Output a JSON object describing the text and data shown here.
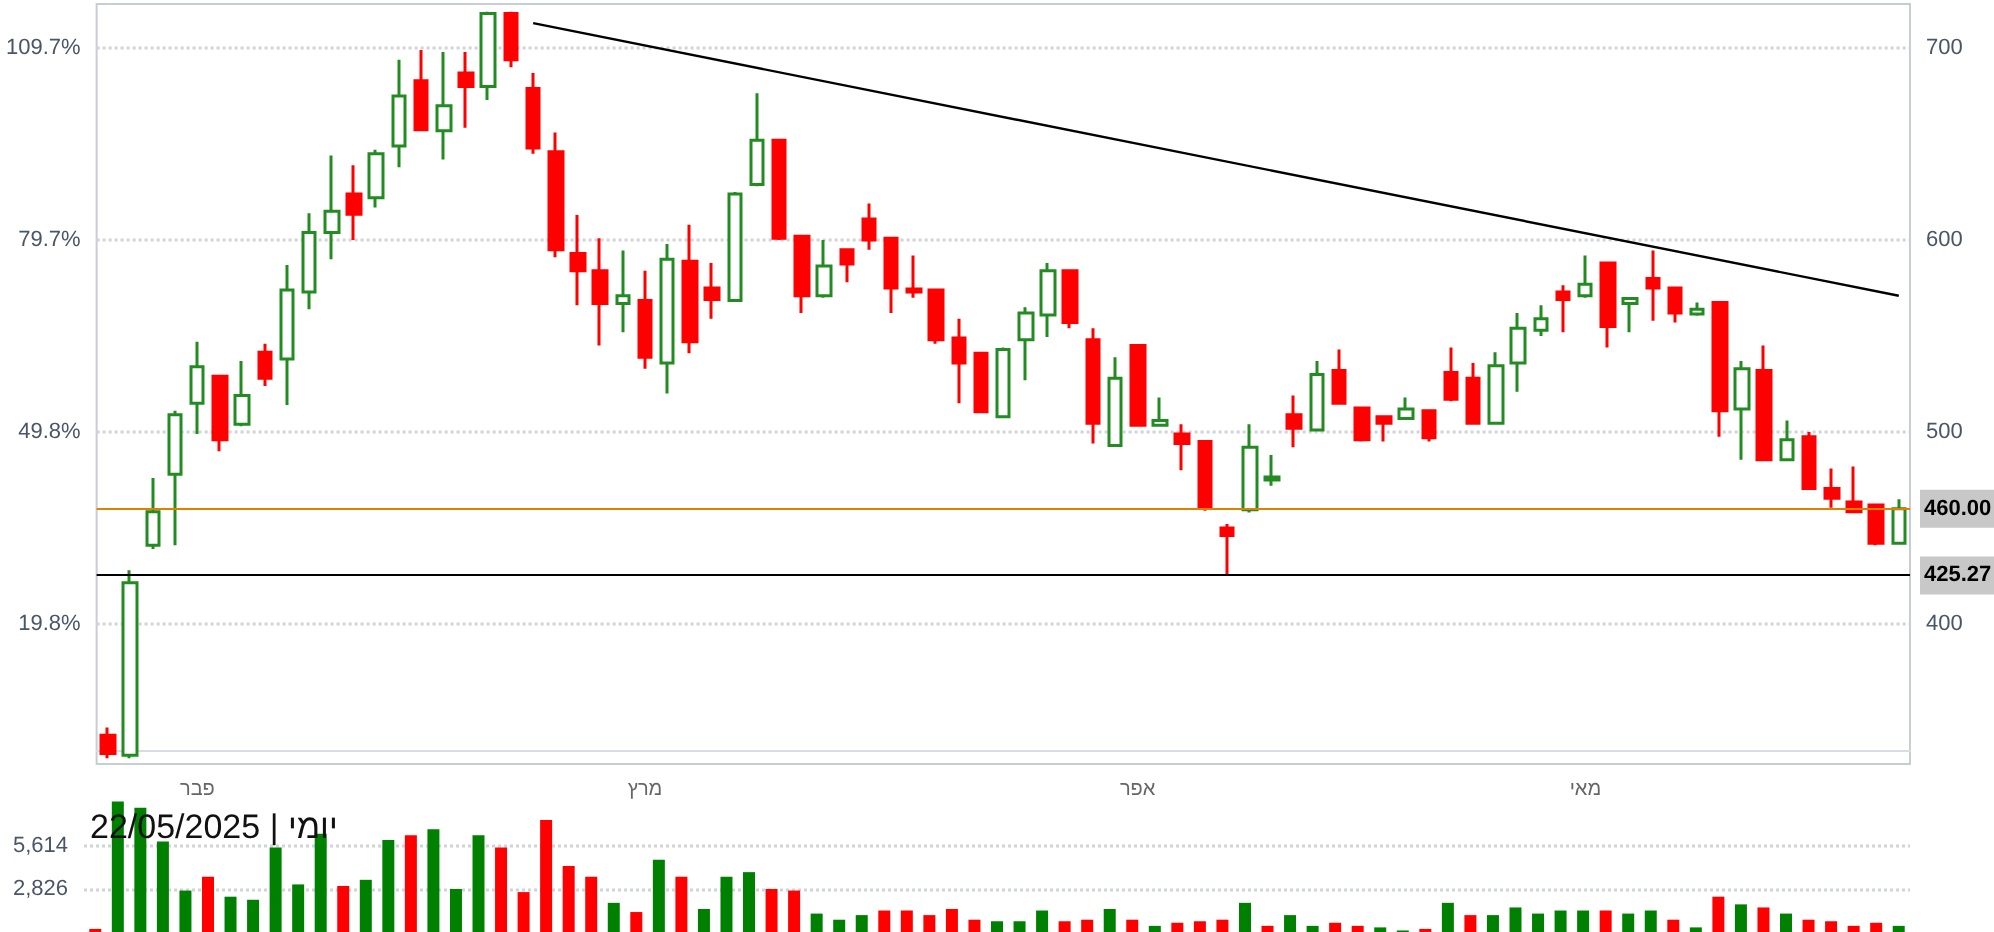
{
  "chart_data": [
    {
      "type": "candlestick",
      "categories": [
        null,
        null,
        null,
        null,
        "פבר",
        null,
        null,
        null,
        null,
        null,
        null,
        null,
        null,
        null,
        null,
        null,
        null,
        null,
        null,
        null,
        null,
        null,
        null,
        null,
        "מרץ",
        null,
        null,
        null,
        null,
        null,
        null,
        null,
        null,
        null,
        null,
        null,
        null,
        null,
        null,
        null,
        null,
        null,
        null,
        null,
        null,
        null,
        "אפר",
        null,
        null,
        null,
        null,
        null,
        null,
        null,
        null,
        null,
        null,
        null,
        null,
        null,
        null,
        null,
        null,
        null,
        null,
        null,
        "מאי",
        null,
        null,
        null,
        null,
        null,
        null,
        null,
        null,
        null,
        null,
        null,
        null,
        null,
        null
      ],
      "ohlc": [
        [
          342,
          346,
          330,
          332.5
        ],
        [
          331.5,
          428,
          330,
          421.5
        ],
        [
          441,
          476,
          439,
          458.5
        ],
        [
          478,
          511,
          441,
          509
        ],
        [
          515,
          547,
          499,
          534
        ],
        [
          529,
          529,
          490,
          496
        ],
        [
          504,
          537,
          503,
          519
        ],
        [
          541.5,
          546,
          524,
          528
        ],
        [
          538,
          587,
          514,
          574
        ],
        [
          573,
          614,
          564,
          604
        ],
        [
          604,
          644,
          590,
          615
        ],
        [
          624,
          639,
          600,
          613.5
        ],
        [
          622,
          647,
          617,
          645
        ],
        [
          649,
          694,
          638,
          675
        ],
        [
          683,
          699,
          657,
          657.5
        ],
        [
          657,
          698,
          642,
          670
        ],
        [
          687,
          698,
          658.5,
          680
        ],
        [
          680,
          719,
          673,
          718
        ],
        [
          718,
          719,
          690,
          694
        ],
        [
          679,
          687,
          645,
          648
        ],
        [
          646,
          656,
          591,
          595
        ],
        [
          593,
          613,
          566,
          584
        ],
        [
          584,
          601,
          545,
          567
        ],
        [
          567,
          594.5,
          552,
          571
        ],
        [
          568.5,
          584,
          533,
          539
        ],
        [
          536,
          598,
          520,
          590
        ],
        [
          589,
          608,
          541,
          547
        ],
        [
          575,
          588,
          559,
          569
        ],
        [
          568.5,
          625,
          568.5,
          624
        ],
        [
          629,
          676.5,
          628,
          652
        ],
        [
          652,
          652,
          600,
          601
        ],
        [
          602,
          602,
          562,
          571
        ],
        [
          571,
          600,
          570,
          586.5
        ],
        [
          595,
          595,
          578,
          587.5
        ],
        [
          611,
          619,
          595,
          600
        ],
        [
          601,
          601,
          562,
          575
        ],
        [
          574.5,
          592,
          570,
          573
        ],
        [
          574,
          574,
          546,
          548
        ],
        [
          549,
          559,
          515,
          536
        ],
        [
          541,
          541.5,
          510.5,
          510.5
        ],
        [
          508,
          544,
          508,
          543
        ],
        [
          548,
          565,
          527,
          562
        ],
        [
          561,
          588,
          549.5,
          584
        ],
        [
          584,
          584,
          554,
          557
        ],
        [
          548,
          554,
          494,
          504.5
        ],
        [
          493,
          539,
          493,
          528
        ],
        [
          545,
          545,
          503.5,
          503.5
        ],
        [
          503.5,
          518,
          503,
          506
        ],
        [
          499,
          504,
          480,
          494
        ],
        [
          495,
          495,
          459,
          461
        ],
        [
          450,
          452,
          425,
          446
        ],
        [
          459.5,
          504,
          458,
          492
        ],
        [
          475,
          488,
          472,
          476.5
        ],
        [
          509,
          519,
          492,
          502
        ],
        [
          501,
          537,
          501,
          530
        ],
        [
          532,
          543,
          515,
          515
        ],
        [
          512.5,
          512.5,
          495,
          496
        ],
        [
          508,
          508,
          495,
          504.5
        ],
        [
          507,
          518,
          507,
          512
        ],
        [
          511,
          511,
          495,
          497
        ],
        [
          531,
          544,
          516,
          517
        ],
        [
          528,
          536,
          504.5,
          504.5
        ],
        [
          504.5,
          541.5,
          504,
          534.5
        ],
        [
          536,
          562,
          521,
          554
        ],
        [
          553,
          566,
          550,
          559
        ],
        [
          573,
          576.5,
          552,
          569
        ],
        [
          571,
          592,
          570,
          577
        ],
        [
          588,
          588,
          544,
          555
        ],
        [
          567,
          570,
          552,
          569.5
        ],
        [
          580,
          594.5,
          558,
          575
        ],
        [
          575,
          575,
          557,
          562
        ],
        [
          561.5,
          567.5,
          560.5,
          564
        ],
        [
          567.5,
          567.5,
          497.5,
          511
        ],
        [
          512,
          537,
          485.5,
          533
        ],
        [
          532,
          545,
          485.5,
          485.5
        ],
        [
          485.5,
          506,
          485.5,
          496
        ],
        [
          497.5,
          500,
          470.5,
          470.5
        ],
        [
          470.5,
          481,
          460.5,
          465.5
        ],
        [
          463.5,
          482,
          458.5,
          458.5
        ],
        [
          462,
          462,
          441,
          442
        ],
        [
          442,
          465,
          442,
          460
        ]
      ],
      "colors": [
        "#ff0000",
        "#228b22",
        "#228b22",
        "#228b22",
        "#228b22",
        "#ff0000",
        "#228b22",
        "#ff0000",
        "#228b22",
        "#228b22",
        "#228b22",
        "#ff0000",
        "#228b22",
        "#228b22",
        "#ff0000",
        "#228b22",
        "#ff0000",
        "#228b22",
        "#ff0000",
        "#ff0000",
        "#ff0000",
        "#ff0000",
        "#ff0000",
        "#228b22",
        "#ff0000",
        "#228b22",
        "#ff0000",
        "#ff0000",
        "#228b22",
        "#228b22",
        "#ff0000",
        "#ff0000",
        "#228b22",
        "#ff0000",
        "#ff0000",
        "#ff0000",
        "#ff0000",
        "#ff0000",
        "#ff0000",
        "#ff0000",
        "#228b22",
        "#228b22",
        "#228b22",
        "#ff0000",
        "#ff0000",
        "#228b22",
        "#ff0000",
        "#228b22",
        "#ff0000",
        "#ff0000",
        "#ff0000",
        "#228b22",
        "#228b22",
        "#ff0000",
        "#228b22",
        "#ff0000",
        "#ff0000",
        "#ff0000",
        "#228b22",
        "#ff0000",
        "#ff0000",
        "#ff0000",
        "#228b22",
        "#228b22",
        "#228b22",
        "#ff0000",
        "#228b22",
        "#ff0000",
        "#228b22",
        "#ff0000",
        "#ff0000",
        "#228b22",
        "#ff0000",
        "#228b22",
        "#ff0000",
        "#228b22",
        "#ff0000",
        "#ff0000",
        "#ff0000",
        "#ff0000",
        "#228b22"
      ],
      "series": [
        {
          "type": "line",
          "color": "#000000",
          "values": [
            null,
            null,
            null,
            null,
            null,
            null,
            null,
            null,
            null,
            null,
            null,
            null,
            null,
            null,
            null,
            null,
            null,
            null,
            null,
            713,
            null,
            null,
            null,
            null,
            null,
            null,
            null,
            null,
            null,
            null,
            null,
            null,
            null,
            null,
            null,
            null,
            null,
            null,
            null,
            null,
            null,
            null,
            null,
            null,
            null,
            null,
            null,
            null,
            null,
            null,
            null,
            null,
            null,
            null,
            null,
            null,
            null,
            null,
            null,
            null,
            null,
            null,
            null,
            null,
            null,
            null,
            null,
            null,
            null,
            null,
            null,
            null,
            null,
            null,
            null,
            null,
            null,
            null,
            null,
            null,
            571
          ]
        }
      ],
      "marker": "none",
      "ylim": [
        327,
        723
      ],
      "yticks": [
        400,
        500,
        600,
        700
      ],
      "y2lim": [
        -2.1,
        116.6
      ],
      "y2ticks": [
        {
          "value": 19.8,
          "label": "19.8%"
        },
        {
          "value": 49.8,
          "label": "49.8%"
        },
        {
          "value": 79.7,
          "label": "79.7%"
        },
        {
          "value": 109.7,
          "label": "109.7%"
        }
      ],
      "grid": "y",
      "ref_lines": [
        {
          "axis": "y",
          "value": 460,
          "label": "460.00",
          "color": "#e08000"
        },
        {
          "axis": "y",
          "value": 425.27,
          "label": "425.27",
          "color": "#000000"
        }
      ]
    },
    {
      "type": "bar",
      "title": "יומי | 22/05/2025",
      "categories": [
        null,
        null,
        null,
        null,
        null,
        null,
        null,
        null,
        null,
        null,
        null,
        null,
        null,
        null,
        null,
        null,
        null,
        null,
        null,
        null,
        null,
        null,
        null,
        null,
        null,
        null,
        null,
        null,
        null,
        null,
        null,
        null,
        null,
        null,
        null,
        null,
        null,
        null,
        null,
        null,
        null,
        null,
        null,
        null,
        null,
        null,
        null,
        null,
        null,
        null,
        null,
        null,
        null,
        null,
        null,
        null,
        null,
        null,
        null,
        null,
        null,
        null,
        null,
        null,
        null,
        null,
        null,
        null,
        null,
        null,
        null,
        null,
        null,
        null,
        null,
        null,
        null,
        null,
        null,
        null,
        null
      ],
      "values": [
        200,
        8500,
        8100,
        5900,
        2700,
        3600,
        2300,
        2100,
        5500,
        3100,
        6400,
        3000,
        3400,
        6000,
        6300,
        6700,
        2800,
        6300,
        5500,
        2600,
        7300,
        4300,
        3600,
        1900,
        1300,
        4700,
        3600,
        1500,
        3600,
        3900,
        2800,
        2700,
        1200,
        800,
        1100,
        1400,
        1400,
        1100,
        1500,
        800,
        700,
        700,
        1400,
        700,
        800,
        1500,
        800,
        400,
        600,
        700,
        800,
        1900,
        400,
        1100,
        400,
        600,
        400,
        300,
        100,
        200,
        1900,
        1100,
        1100,
        1600,
        1200,
        1400,
        1400,
        1400,
        1200,
        1400,
        800,
        300,
        2300,
        1800,
        1600,
        1200,
        800,
        700,
        400,
        600,
        400
      ],
      "colors": [
        "#ff0000",
        "#008000",
        "#008000",
        "#008000",
        "#008000",
        "#ff0000",
        "#008000",
        "#008000",
        "#008000",
        "#008000",
        "#008000",
        "#ff0000",
        "#008000",
        "#008000",
        "#ff0000",
        "#008000",
        "#008000",
        "#008000",
        "#ff0000",
        "#ff0000",
        "#ff0000",
        "#ff0000",
        "#ff0000",
        "#008000",
        "#ff0000",
        "#008000",
        "#ff0000",
        "#008000",
        "#008000",
        "#008000",
        "#ff0000",
        "#ff0000",
        "#008000",
        "#008000",
        "#008000",
        "#ff0000",
        "#ff0000",
        "#ff0000",
        "#ff0000",
        "#ff0000",
        "#008000",
        "#008000",
        "#008000",
        "#ff0000",
        "#ff0000",
        "#008000",
        "#ff0000",
        "#008000",
        "#ff0000",
        "#ff0000",
        "#ff0000",
        "#008000",
        "#ff0000",
        "#008000",
        "#008000",
        "#ff0000",
        "#ff0000",
        "#008000",
        "#008000",
        "#ff0000",
        "#008000",
        "#ff0000",
        "#008000",
        "#008000",
        "#008000",
        "#008000",
        "#008000",
        "#ff0000",
        "#008000",
        "#008000",
        "#ff0000",
        "#008000",
        "#ff0000",
        "#008000",
        "#ff0000",
        "#008000",
        "#ff0000",
        "#ff0000",
        "#ff0000",
        "#ff0000",
        "#008000"
      ],
      "ylim": [
        0,
        8600
      ],
      "yticks": [
        {
          "value": 2826,
          "label": "2,826"
        },
        {
          "value": 5614,
          "label": "5,614"
        }
      ],
      "grid": "y",
      "tick_labels": "y"
    }
  ]
}
